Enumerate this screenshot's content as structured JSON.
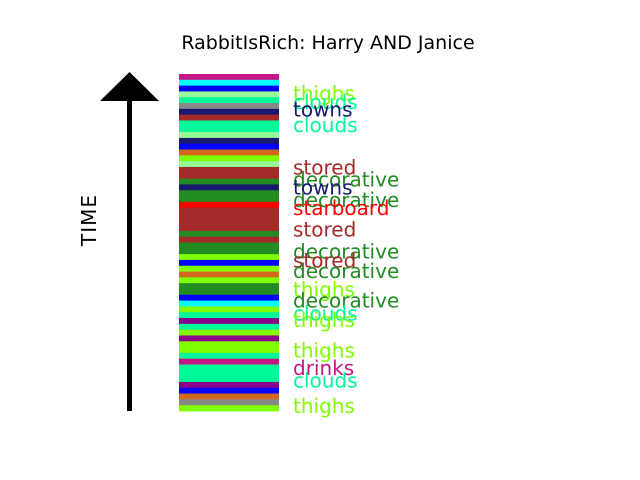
{
  "chart_data": {
    "type": "bar",
    "title": "RabbitIsRich: Harry AND Janice",
    "ylabel": "TIME",
    "palette": {
      "thighs": "#7fff00",
      "clouds": "#00fa9a",
      "towns": "#191970",
      "stored": "#a52a2a",
      "decorative": "#228b22",
      "starboard": "#ff0000",
      "drinks": "#c71585",
      "blue": "#0000ff",
      "purple": "#8b008b",
      "orange": "#d2691e",
      "gray": "#888888",
      "cyan": "#00ffff",
      "lightgreen": "#98fb98"
    },
    "stripes": [
      "drinks",
      "cyan",
      "blue",
      "lightgreen",
      "clouds",
      "gray",
      "towns",
      "stored",
      "clouds",
      "clouds",
      "lightgreen",
      "towns",
      "blue",
      "orange",
      "thighs",
      "lightgreen",
      "stored",
      "stored",
      "decorative",
      "towns",
      "decorative",
      "decorative",
      "starboard",
      "stored",
      "stored",
      "stored",
      "stored",
      "decorative",
      "stored",
      "decorative",
      "decorative",
      "thighs",
      "blue",
      "thighs",
      "orange",
      "thighs",
      "decorative",
      "decorative",
      "blue",
      "cyan",
      "thighs",
      "clouds",
      "purple",
      "clouds",
      "thighs",
      "purple",
      "thighs",
      "thighs",
      "clouds",
      "drinks",
      "clouds",
      "clouds",
      "clouds",
      "purple",
      "blue",
      "orange",
      "gray",
      "thighs"
    ],
    "labels": [
      {
        "text": "thighs",
        "category": "thighs",
        "pos": 0.058
      },
      {
        "text": "clouds",
        "category": "clouds",
        "pos": 0.083
      },
      {
        "text": "towns",
        "category": "towns",
        "pos": 0.106
      },
      {
        "text": "clouds",
        "category": "clouds",
        "pos": 0.151
      },
      {
        "text": "stored",
        "category": "stored",
        "pos": 0.277
      },
      {
        "text": "decorative",
        "category": "decorative",
        "pos": 0.313
      },
      {
        "text": "towns",
        "category": "towns",
        "pos": 0.337
      },
      {
        "text": "decorative",
        "category": "decorative",
        "pos": 0.374
      },
      {
        "text": "starboard",
        "category": "starboard",
        "pos": 0.398
      },
      {
        "text": "stored",
        "category": "stored",
        "pos": 0.461
      },
      {
        "text": "decorative",
        "category": "decorative",
        "pos": 0.527
      },
      {
        "text": "stored",
        "category": "stored",
        "pos": 0.553
      },
      {
        "text": "decorative",
        "category": "decorative",
        "pos": 0.585
      },
      {
        "text": "thighs",
        "category": "thighs",
        "pos": 0.64
      },
      {
        "text": "decorative",
        "category": "decorative",
        "pos": 0.672
      },
      {
        "text": "clouds",
        "category": "clouds",
        "pos": 0.711
      },
      {
        "text": "thighs",
        "category": "thighs",
        "pos": 0.73
      },
      {
        "text": "thighs",
        "category": "thighs",
        "pos": 0.821
      },
      {
        "text": "drinks",
        "category": "drinks",
        "pos": 0.872
      },
      {
        "text": "clouds",
        "category": "clouds",
        "pos": 0.909
      },
      {
        "text": "thighs",
        "category": "thighs",
        "pos": 0.985
      }
    ]
  }
}
